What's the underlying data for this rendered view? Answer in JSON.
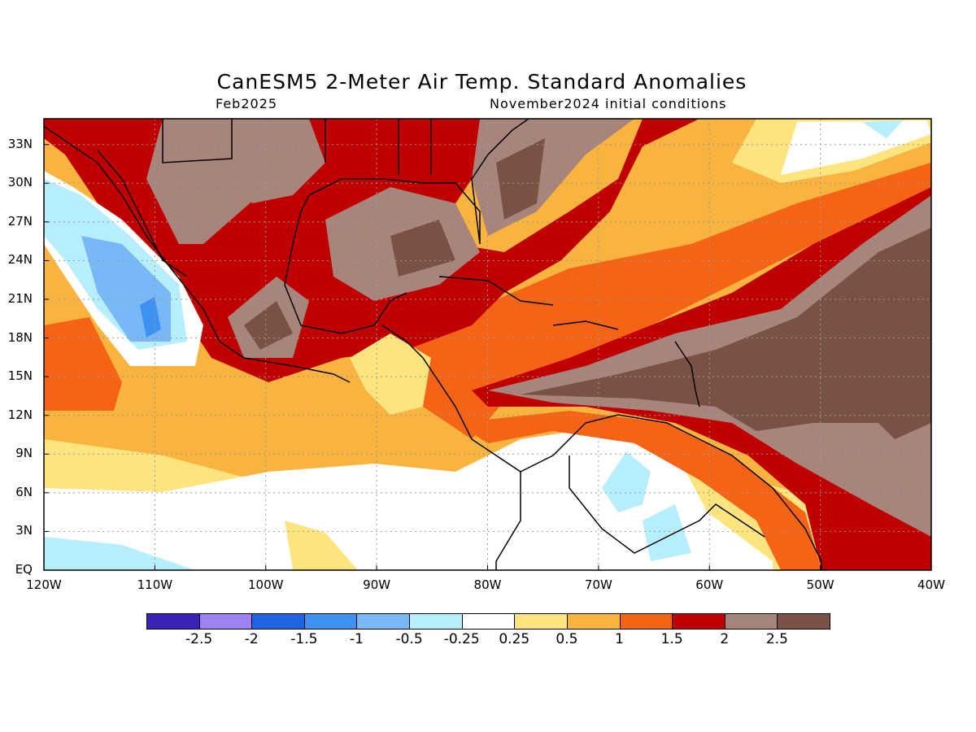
{
  "title": "CanESM5 2-Meter Air Temp. Standard Anomalies",
  "subtitle_left": "Feb2025",
  "subtitle_right": "November2024 initial conditions",
  "lat_labels": [
    "33N",
    "30N",
    "27N",
    "24N",
    "21N",
    "18N",
    "15N",
    "12N",
    "9N",
    "6N",
    "3N",
    "EQ"
  ],
  "lon_labels": [
    "120W",
    "110W",
    "100W",
    "90W",
    "80W",
    "70W",
    "60W",
    "50W",
    "40W"
  ],
  "colorbar": {
    "colors": [
      "#3b22b8",
      "#9f83f5",
      "#1f64e0",
      "#3d91f0",
      "#78b8f7",
      "#b6eefd",
      "#ffffff",
      "#fde47e",
      "#f9b33f",
      "#f56314",
      "#c00000",
      "#a7857c",
      "#7a5145"
    ],
    "labels": [
      "-2.5",
      "-2",
      "-1.5",
      "-1",
      "-0.5",
      "-0.25",
      "0.25",
      "0.5",
      "1",
      "1.5",
      "2",
      "2.5"
    ]
  }
}
